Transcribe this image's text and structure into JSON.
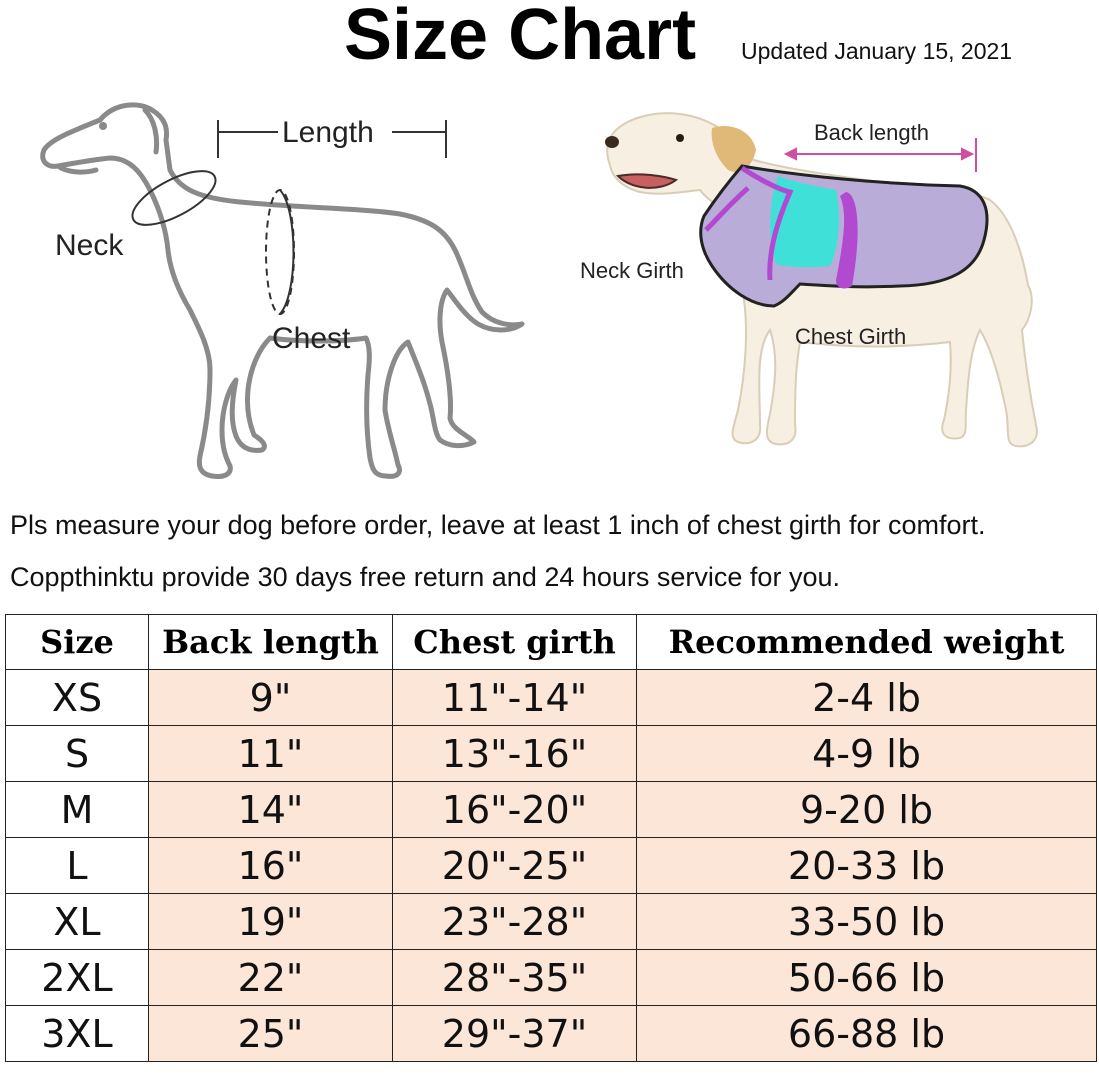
{
  "title": "Size Chart",
  "updated": "Updated January 15, 2021",
  "left_diagram": {
    "length_label": "Length",
    "neck_label": "Neck",
    "chest_label": "Chest"
  },
  "right_diagram": {
    "back_length_label": "Back length",
    "neck_girth_label": "Neck Girth",
    "chest_girth_label": "Chest Girth"
  },
  "notes": [
    "Pls measure your dog before order, leave at least 1 inch of chest girth for comfort.",
    "Coppthinktu provide 30 days free return and 24 hours service for you."
  ],
  "table": {
    "headers": [
      "Size",
      "Back length",
      "Chest girth",
      "Recommended weight"
    ],
    "rows": [
      [
        "XS",
        "9\"",
        "11\"-14\"",
        "2-4 lb"
      ],
      [
        "S",
        "11\"",
        "13\"-16\"",
        "4-9 lb"
      ],
      [
        "M",
        "14\"",
        "16\"-20\"",
        "9-20 lb"
      ],
      [
        "L",
        "16\"",
        "20\"-25\"",
        "20-33 lb"
      ],
      [
        "XL",
        "19\"",
        "23\"-28\"",
        "33-50 lb"
      ],
      [
        "2XL",
        "22\"",
        "28\"-35\"",
        "50-66 lb"
      ],
      [
        "3XL",
        "25\"",
        "29\"-37\"",
        "66-88 lb"
      ]
    ]
  },
  "colors": {
    "cell_fill": "#fbe6d8",
    "outline": "#8a8a8a",
    "coat_purple": "#b9acd8",
    "coat_trim": "#b14ad0",
    "coat_teal": "#3fe0d8",
    "dog_fur": "#f6efe2",
    "ear": "#e0b878"
  }
}
